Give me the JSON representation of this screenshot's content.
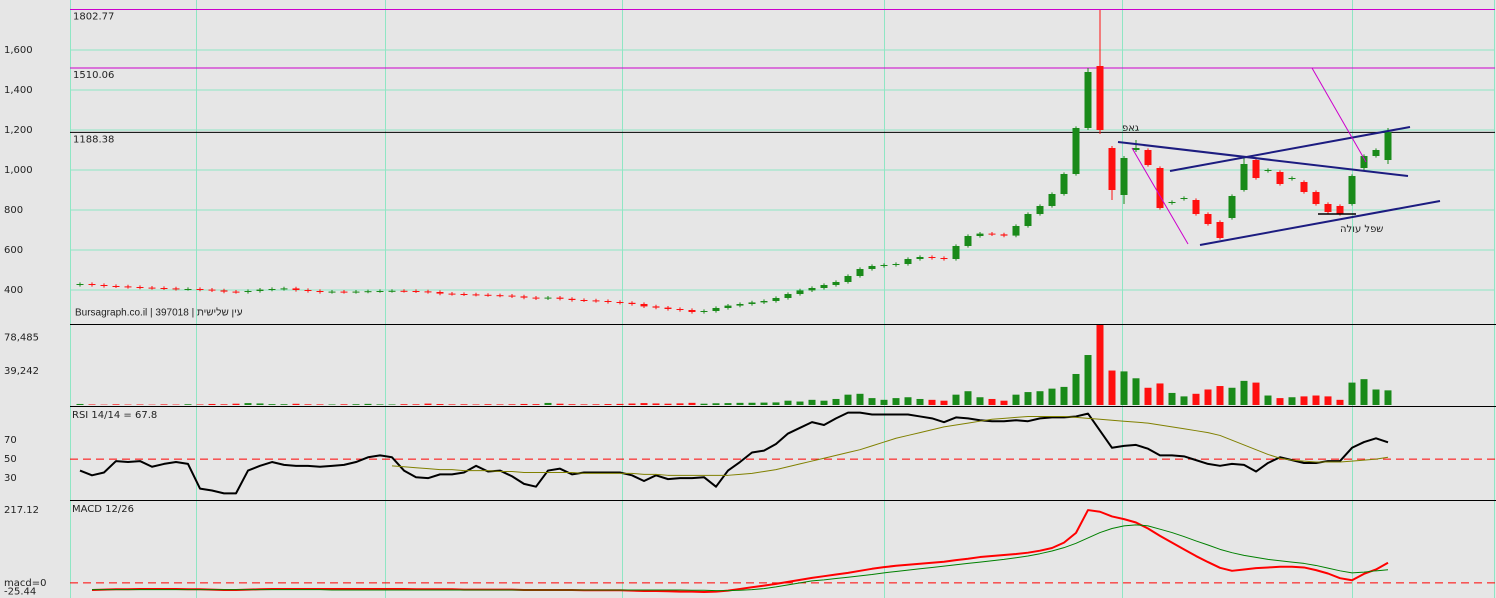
{
  "chart_data": [
    {
      "type": "candlestick",
      "watermark": "Bursagraph.co.il | 397018 | עין שלישית",
      "open": [
        425,
        430,
        425,
        420,
        418,
        415,
        412,
        410,
        408,
        405,
        405,
        402,
        398,
        392,
        390,
        395,
        402,
        405,
        408,
        400,
        395,
        390,
        392,
        390,
        392,
        394,
        395,
        396,
        395,
        393,
        390,
        382,
        380,
        378,
        376,
        374,
        372,
        368,
        362,
        358,
        362,
        356,
        350,
        348,
        345,
        340,
        336,
        330,
        318,
        312,
        305,
        300,
        290,
        295,
        310,
        322,
        330,
        338,
        345,
        360,
        380,
        398,
        410,
        425,
        440,
        470,
        505,
        520,
        525,
        530,
        555,
        565,
        560,
        555,
        620,
        670,
        682,
        678,
        672,
        720,
        780,
        820,
        880,
        980,
        1210,
        1520,
        1110,
        875,
        1100,
        1100,
        1010,
        835,
        855,
        850,
        780,
        740,
        760,
        900,
        1050,
        995,
        990,
        955,
        940,
        890,
        830,
        820,
        830,
        1010,
        1070,
        1050
      ],
      "high": [
        438,
        438,
        433,
        428,
        426,
        423,
        420,
        418,
        416,
        413,
        413,
        410,
        406,
        400,
        403,
        410,
        413,
        416,
        416,
        408,
        403,
        400,
        400,
        400,
        402,
        403,
        404,
        404,
        403,
        401,
        398,
        390,
        388,
        386,
        384,
        382,
        380,
        376,
        370,
        370,
        370,
        364,
        358,
        356,
        353,
        348,
        344,
        338,
        326,
        320,
        313,
        308,
        303,
        318,
        330,
        338,
        346,
        353,
        368,
        388,
        406,
        418,
        433,
        448,
        478,
        513,
        528,
        533,
        538,
        563,
        573,
        573,
        568,
        628,
        678,
        690,
        690,
        686,
        728,
        788,
        828,
        888,
        988,
        1218,
        1510,
        1800,
        1120,
        1070,
        1150,
        1108,
        1018,
        848,
        868,
        858,
        788,
        748,
        878,
        1060,
        1058,
        1008,
        998,
        968,
        948,
        898,
        838,
        828,
        978,
        1078,
        1108,
        1210
      ],
      "low": [
        417,
        417,
        412,
        410,
        407,
        404,
        402,
        400,
        397,
        397,
        394,
        390,
        384,
        382,
        382,
        387,
        394,
        397,
        392,
        387,
        382,
        382,
        382,
        382,
        384,
        386,
        387,
        387,
        385,
        382,
        374,
        372,
        370,
        368,
        366,
        364,
        360,
        354,
        350,
        350,
        348,
        342,
        340,
        337,
        332,
        328,
        322,
        310,
        304,
        297,
        292,
        282,
        282,
        287,
        302,
        314,
        322,
        330,
        337,
        352,
        372,
        390,
        402,
        417,
        432,
        462,
        497,
        512,
        517,
        522,
        547,
        552,
        547,
        547,
        612,
        662,
        670,
        664,
        664,
        712,
        772,
        812,
        872,
        972,
        1200,
        1180,
        850,
        830,
        1090,
        1017,
        802,
        827,
        847,
        772,
        722,
        652,
        752,
        892,
        952,
        987,
        922,
        947,
        882,
        822,
        782,
        772,
        822,
        1000,
        1062,
        1030
      ],
      "close": [
        430,
        425,
        420,
        418,
        415,
        412,
        410,
        408,
        405,
        405,
        402,
        398,
        392,
        390,
        395,
        402,
        405,
        408,
        400,
        395,
        390,
        392,
        390,
        392,
        394,
        395,
        396,
        395,
        393,
        390,
        382,
        380,
        378,
        376,
        374,
        372,
        368,
        362,
        358,
        362,
        356,
        350,
        348,
        345,
        340,
        336,
        330,
        318,
        312,
        305,
        300,
        290,
        295,
        310,
        322,
        330,
        338,
        345,
        360,
        380,
        398,
        410,
        425,
        440,
        470,
        505,
        520,
        525,
        530,
        555,
        565,
        560,
        555,
        620,
        670,
        682,
        678,
        672,
        720,
        780,
        820,
        880,
        980,
        1210,
        1490,
        1200,
        900,
        1060,
        1110,
        1025,
        810,
        840,
        860,
        780,
        730,
        660,
        870,
        1030,
        960,
        1000,
        930,
        960,
        890,
        830,
        790,
        780,
        970,
        1070,
        1100,
        1190
      ],
      "up_color": "#1a8a1a",
      "down_color": "#ff1010",
      "ylim": [
        230,
        1850
      ],
      "yticks": [
        400,
        600,
        800,
        {
          "value": 1000,
          "label": "1,000"
        },
        {
          "value": 1200,
          "label": "1,200"
        },
        {
          "value": 1400,
          "label": "1,400"
        },
        {
          "value": 1600,
          "label": "1,600"
        }
      ],
      "grid": true,
      "grid_color": "#8fe6c4",
      "levels": [
        {
          "value": 1802.77,
          "color": "#cc00cc"
        },
        {
          "value": 1510.06,
          "color": "#cc00cc"
        },
        {
          "value": 1188.38,
          "color": "#000000"
        }
      ],
      "annotations": [
        {
          "text": "גאפ",
          "color": "#cc00cc"
        },
        {
          "text": "שפל עולה",
          "color": "#cc00cc"
        }
      ]
    },
    {
      "type": "volume",
      "values": [
        1200,
        600,
        400,
        800,
        500,
        600,
        400,
        700,
        500,
        900,
        600,
        1200,
        800,
        1500,
        2200,
        1800,
        1000,
        900,
        1400,
        800,
        700,
        600,
        800,
        900,
        1300,
        700,
        600,
        900,
        800,
        1600,
        1100,
        700,
        800,
        600,
        900,
        700,
        800,
        1200,
        1000,
        2400,
        1500,
        900,
        700,
        800,
        1100,
        1300,
        1700,
        2200,
        1800,
        1500,
        1900,
        2500,
        1500,
        2000,
        2200,
        2500,
        2600,
        2800,
        3000,
        5000,
        4000,
        6000,
        5000,
        7000,
        12000,
        13000,
        8000,
        6000,
        8000,
        9000,
        7000,
        6000,
        5000,
        12000,
        16000,
        9000,
        7000,
        5000,
        12000,
        15000,
        16000,
        19000,
        21000,
        36000,
        58000,
        93000,
        40000,
        39000,
        31000,
        20000,
        25000,
        14000,
        10000,
        13000,
        18000,
        22000,
        20000,
        28000,
        26000,
        11000,
        8000,
        9000,
        10000,
        11000,
        10000,
        6000,
        26000,
        30000,
        18000,
        17000
      ],
      "ylim": [
        0,
        94000
      ],
      "yticks": [
        {
          "value": 39242,
          "label": "39,242"
        },
        {
          "value": 78485,
          "label": "78,485"
        }
      ],
      "tick_color": "#7f8fa6"
    },
    {
      "type": "line",
      "title": "RSI 14/14 = 67.8",
      "series": [
        {
          "color": "#000000",
          "width": 2,
          "values": [
            38,
            33,
            36,
            48,
            47,
            48,
            42,
            45,
            47,
            45,
            19,
            17,
            14,
            14,
            38,
            43,
            47,
            44,
            43,
            43,
            42,
            43,
            44,
            47,
            52,
            54,
            52,
            38,
            31,
            30,
            34,
            34,
            36,
            43,
            37,
            38,
            32,
            24,
            21,
            38,
            40,
            34,
            36,
            36,
            36,
            36,
            33,
            27,
            33,
            29,
            30,
            30,
            31,
            21,
            38,
            47,
            57,
            59,
            66,
            77,
            83,
            89,
            86,
            93,
            99,
            99,
            97,
            97,
            97,
            97,
            95,
            93,
            89,
            94,
            93,
            91,
            90,
            90,
            91,
            90,
            93,
            94,
            94,
            95,
            98,
            80,
            62,
            64,
            65,
            61,
            54,
            54,
            53,
            49,
            45,
            43,
            45,
            44,
            37,
            46,
            52,
            49,
            46,
            46,
            48,
            48,
            62,
            68,
            72,
            67.8
          ]
        },
        {
          "color": "#808000",
          "width": 1,
          "values": [
            null,
            null,
            null,
            null,
            null,
            null,
            null,
            null,
            null,
            null,
            null,
            null,
            null,
            null,
            null,
            null,
            null,
            null,
            null,
            null,
            null,
            null,
            null,
            null,
            null,
            null,
            43,
            42,
            41,
            40,
            39,
            39,
            38,
            38,
            38,
            37,
            37,
            36,
            36,
            36,
            36,
            36,
            35,
            35,
            35,
            35,
            35,
            34,
            34,
            33,
            33,
            33,
            33,
            33,
            33,
            34,
            35,
            37,
            39,
            42,
            45,
            48,
            51,
            54,
            57,
            60,
            64,
            68,
            72,
            75,
            78,
            81,
            84,
            86,
            88,
            90,
            92,
            93,
            94,
            95,
            95,
            95,
            95,
            94,
            93,
            92,
            91,
            90,
            89,
            88,
            86,
            84,
            82,
            80,
            78,
            75,
            70,
            65,
            60,
            55,
            51,
            49,
            48,
            47,
            47,
            47,
            48,
            49,
            50,
            52
          ]
        }
      ],
      "ylim": [
        7,
        106
      ],
      "yticks": [
        30,
        50,
        70
      ],
      "ref_line": 50,
      "ref_color": "#ff0000"
    },
    {
      "type": "line",
      "title": "MACD 12/26",
      "series": [
        {
          "color": "#ff0000",
          "width": 2,
          "values": [
            null,
            -21,
            -20,
            -19,
            -19,
            -18,
            -18,
            -18,
            -18,
            -19,
            -19,
            -20,
            -21,
            -21,
            -20,
            -19,
            -18,
            -18,
            -18,
            -18,
            -18,
            -18,
            -18,
            -18,
            -18,
            -18,
            -18,
            -18,
            -19,
            -19,
            -19,
            -19,
            -20,
            -20,
            -20,
            -20,
            -20,
            -21,
            -21,
            -21,
            -21,
            -21,
            -22,
            -22,
            -22,
            -22,
            -23,
            -24,
            -24,
            -25,
            -26,
            -26,
            -27,
            -26,
            -23,
            -18,
            -13,
            -8,
            -3,
            3,
            9,
            15,
            20,
            25,
            30,
            36,
            42,
            47,
            51,
            54,
            57,
            60,
            63,
            68,
            72,
            77,
            80,
            83,
            86,
            90,
            96,
            104,
            120,
            149,
            217,
            212,
            198,
            190,
            180,
            162,
            140,
            120,
            100,
            80,
            62,
            45,
            36,
            40,
            44,
            46,
            48,
            48,
            46,
            38,
            28,
            14,
            8,
            27,
            40,
            60
          ]
        },
        {
          "color": "#008000",
          "width": 1,
          "values": [
            null,
            -20,
            -20,
            -20,
            -20,
            -20,
            -20,
            -20,
            -20,
            -20,
            -20,
            -20,
            -20,
            -20,
            -20,
            -20,
            -20,
            -20,
            -20,
            -20,
            -20,
            -21,
            -21,
            -21,
            -21,
            -21,
            -21,
            -21,
            -21,
            -21,
            -21,
            -21,
            -21,
            -21,
            -21,
            -21,
            -21,
            -21,
            -21,
            -21,
            -21,
            -21,
            -21,
            -21,
            -21,
            -21,
            -21,
            -21,
            -21,
            -21,
            -21,
            -22,
            -22,
            -23,
            -23,
            -22,
            -20,
            -17,
            -12,
            -6,
            0,
            6,
            9,
            13,
            17,
            21,
            25,
            30,
            34,
            38,
            42,
            46,
            50,
            54,
            58,
            62,
            66,
            70,
            75,
            80,
            87,
            95,
            105,
            118,
            134,
            150,
            162,
            170,
            173,
            170,
            160,
            150,
            138,
            125,
            113,
            100,
            90,
            82,
            76,
            70,
            66,
            62,
            58,
            52,
            44,
            36,
            30,
            32,
            36,
            39
          ]
        }
      ],
      "ylim": [
        -45,
        247
      ],
      "yticks": [
        -25.44,
        {
          "value": 0,
          "label": "macd=0"
        },
        217.12
      ],
      "ref_line": 0,
      "ref_color": "#ff0000"
    }
  ]
}
